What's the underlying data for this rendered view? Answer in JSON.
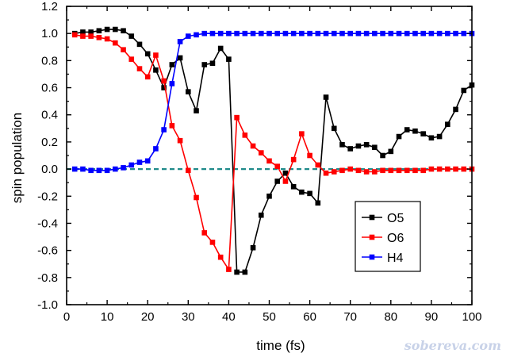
{
  "chart_data": {
    "type": "line",
    "title": "",
    "xlabel": "time (fs)",
    "ylabel": "spin population",
    "xlim": [
      0,
      100
    ],
    "ylim": [
      -1.0,
      1.2
    ],
    "xticks": [
      0,
      10,
      20,
      30,
      40,
      50,
      60,
      70,
      80,
      90,
      100
    ],
    "yticks": [
      -1.0,
      -0.8,
      -0.6,
      -0.4,
      -0.2,
      0.0,
      0.2,
      0.4,
      0.6,
      0.8,
      1.0,
      1.2
    ],
    "ytick_labels": [
      "-1.0",
      "-0.8",
      "-0.6",
      "-0.4",
      "-0.2",
      "0.0",
      "0.2",
      "0.4",
      "0.6",
      "0.8",
      "1.0",
      "1.2"
    ],
    "grid": false,
    "legend_position": "bottom-right",
    "reference_line": {
      "y": 0.0,
      "style": "dashed",
      "color": "#1f8a8a"
    },
    "series": [
      {
        "name": "O5",
        "color": "#000000",
        "marker": "square",
        "x": [
          2,
          4,
          6,
          8,
          10,
          12,
          14,
          16,
          18,
          20,
          22,
          24,
          26,
          28,
          30,
          32,
          34,
          36,
          38,
          40,
          42,
          44,
          46,
          48,
          50,
          52,
          54,
          56,
          58,
          60,
          62,
          64,
          66,
          68,
          70,
          72,
          74,
          76,
          78,
          80,
          82,
          84,
          86,
          88,
          90,
          92,
          94,
          96,
          98,
          100
        ],
        "y": [
          1.0,
          1.01,
          1.01,
          1.02,
          1.03,
          1.03,
          1.02,
          0.98,
          0.92,
          0.85,
          0.73,
          0.6,
          0.77,
          0.82,
          0.57,
          0.43,
          0.77,
          0.78,
          0.89,
          0.81,
          -0.76,
          -0.76,
          -0.58,
          -0.34,
          -0.2,
          -0.09,
          -0.03,
          -0.13,
          -0.17,
          -0.18,
          -0.25,
          0.53,
          0.3,
          0.18,
          0.15,
          0.17,
          0.18,
          0.16,
          0.1,
          0.13,
          0.24,
          0.29,
          0.28,
          0.26,
          0.23,
          0.24,
          0.33,
          0.44,
          0.58,
          0.62
        ]
      },
      {
        "name": "O6",
        "color": "#ff0000",
        "marker": "square",
        "x": [
          2,
          4,
          6,
          8,
          10,
          12,
          14,
          16,
          18,
          20,
          22,
          24,
          26,
          28,
          30,
          32,
          34,
          36,
          38,
          40,
          42,
          44,
          46,
          48,
          50,
          52,
          54,
          56,
          58,
          60,
          62,
          64,
          66,
          68,
          70,
          72,
          74,
          76,
          78,
          80,
          82,
          84,
          86,
          88,
          90,
          92,
          94,
          96,
          98,
          100
        ],
        "y": [
          0.99,
          0.98,
          0.98,
          0.97,
          0.96,
          0.93,
          0.88,
          0.81,
          0.74,
          0.68,
          0.84,
          0.65,
          0.32,
          0.21,
          -0.01,
          -0.21,
          -0.47,
          -0.54,
          -0.65,
          -0.74,
          0.38,
          0.25,
          0.17,
          0.12,
          0.06,
          0.02,
          -0.09,
          0.07,
          0.26,
          0.1,
          0.03,
          -0.03,
          -0.02,
          -0.01,
          0.0,
          -0.01,
          -0.02,
          -0.02,
          -0.01,
          -0.01,
          -0.01,
          -0.01,
          -0.01,
          -0.01,
          0.0,
          0.0,
          0.0,
          0.0,
          0.0,
          0.0
        ]
      },
      {
        "name": "H4",
        "color": "#0000ff",
        "marker": "square",
        "x": [
          2,
          4,
          6,
          8,
          10,
          12,
          14,
          16,
          18,
          20,
          22,
          24,
          26,
          28,
          30,
          32,
          34,
          36,
          38,
          40,
          42,
          44,
          46,
          48,
          50,
          52,
          54,
          56,
          58,
          60,
          62,
          64,
          66,
          68,
          70,
          72,
          74,
          76,
          78,
          80,
          82,
          84,
          86,
          88,
          90,
          92,
          94,
          96,
          98,
          100
        ],
        "y": [
          0.0,
          0.0,
          -0.01,
          -0.01,
          -0.01,
          0.0,
          0.01,
          0.03,
          0.05,
          0.06,
          0.15,
          0.29,
          0.63,
          0.94,
          0.98,
          0.99,
          1.0,
          1.0,
          1.0,
          1.0,
          1.0,
          1.0,
          1.0,
          1.0,
          1.0,
          1.0,
          1.0,
          1.0,
          1.0,
          1.0,
          1.0,
          1.0,
          1.0,
          1.0,
          1.0,
          1.0,
          1.0,
          1.0,
          1.0,
          1.0,
          1.0,
          1.0,
          1.0,
          1.0,
          1.0,
          1.0,
          1.0,
          1.0,
          1.0,
          1.0
        ]
      }
    ]
  },
  "watermark": "sobereva.com",
  "colors": {
    "axis": "#000000",
    "watermark": "#c8d2e8"
  }
}
